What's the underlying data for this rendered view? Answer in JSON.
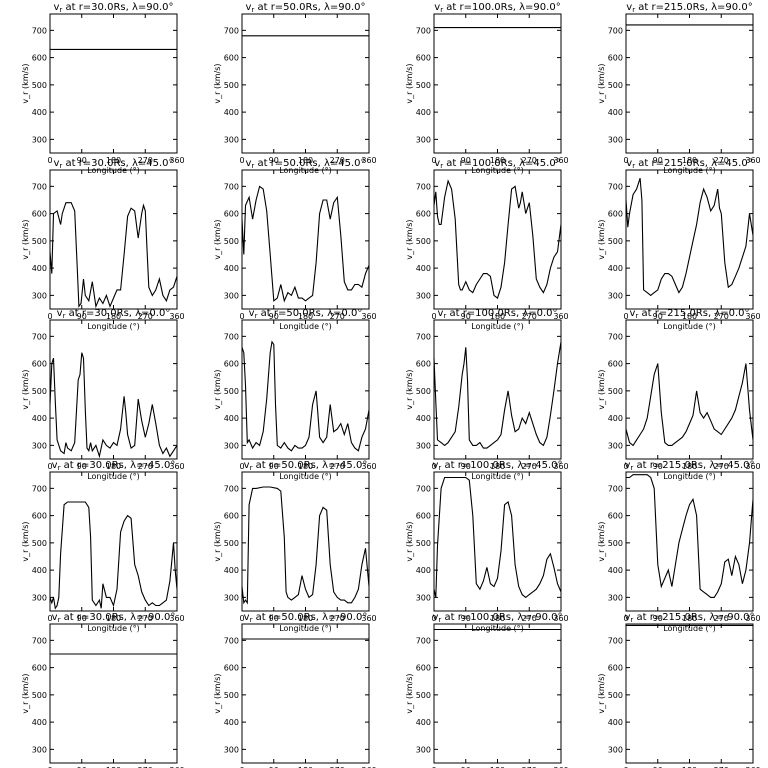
{
  "figure": {
    "xlabel": "Longitude (°)",
    "ylabel": "v_r (km/s)",
    "xlim": [
      0,
      360
    ],
    "ylim": [
      250,
      760
    ],
    "xticks": [
      0,
      90,
      180,
      270,
      360
    ],
    "yticks": [
      300,
      400,
      500,
      600,
      700
    ],
    "radii": [
      "30.0Rs",
      "50.0Rs",
      "100.0Rs",
      "215.0Rs"
    ],
    "latitudes": [
      "90.0°",
      "45.0°",
      "0.0°",
      "-45.0°",
      "-90.0°"
    ],
    "title_prefix": "v",
    "title_sub": "r",
    "title_mid": " at r=",
    "title_lat": ",  λ="
  },
  "chart_data": [
    {
      "type": "line",
      "row": 0,
      "col": 0,
      "title": "vr at r=30.0Rs, λ=90.0°",
      "x": [
        0,
        360
      ],
      "y": [
        630,
        630
      ]
    },
    {
      "type": "line",
      "row": 0,
      "col": 1,
      "title": "vr at r=50.0Rs, λ=90.0°",
      "x": [
        0,
        360
      ],
      "y": [
        680,
        680
      ]
    },
    {
      "type": "line",
      "row": 0,
      "col": 2,
      "title": "vr at r=100.0Rs, λ=90.0°",
      "x": [
        0,
        360
      ],
      "y": [
        710,
        710
      ]
    },
    {
      "type": "line",
      "row": 0,
      "col": 3,
      "title": "vr at r=215.0Rs, λ=90.0°",
      "x": [
        0,
        360
      ],
      "y": [
        720,
        720
      ]
    },
    {
      "type": "line",
      "row": 1,
      "col": 0,
      "title": "vr at r=30.0Rs, λ=45.0°",
      "x": [
        0,
        5,
        10,
        20,
        30,
        35,
        45,
        60,
        70,
        78,
        82,
        88,
        95,
        100,
        110,
        120,
        130,
        140,
        150,
        160,
        170,
        180,
        190,
        200,
        210,
        220,
        230,
        240,
        250,
        260,
        265,
        270,
        275,
        280,
        290,
        300,
        310,
        320,
        330,
        340,
        350,
        360
      ],
      "y": [
        460,
        380,
        600,
        610,
        560,
        600,
        640,
        640,
        610,
        380,
        260,
        270,
        360,
        300,
        280,
        350,
        260,
        290,
        270,
        300,
        260,
        290,
        320,
        320,
        450,
        590,
        620,
        610,
        510,
        600,
        630,
        610,
        470,
        330,
        300,
        320,
        360,
        300,
        280,
        320,
        330,
        370
      ]
    },
    {
      "type": "line",
      "row": 1,
      "col": 1,
      "title": "vr at r=50.0Rs, λ=45.0°",
      "x": [
        0,
        5,
        10,
        20,
        30,
        40,
        50,
        60,
        70,
        80,
        90,
        100,
        110,
        120,
        130,
        140,
        150,
        160,
        170,
        180,
        190,
        200,
        210,
        220,
        230,
        240,
        250,
        260,
        270,
        280,
        290,
        300,
        310,
        320,
        330,
        340,
        350,
        360
      ],
      "y": [
        580,
        450,
        630,
        660,
        580,
        650,
        700,
        690,
        610,
        450,
        280,
        290,
        340,
        280,
        310,
        300,
        330,
        290,
        290,
        280,
        290,
        300,
        420,
        600,
        650,
        650,
        580,
        640,
        660,
        520,
        350,
        320,
        320,
        340,
        340,
        330,
        380,
        410
      ]
    },
    {
      "type": "line",
      "row": 1,
      "col": 2,
      "title": "vr at r=100.0Rs, λ=45.0°",
      "x": [
        0,
        5,
        10,
        15,
        20,
        30,
        40,
        50,
        60,
        70,
        75,
        80,
        90,
        100,
        110,
        120,
        130,
        140,
        150,
        160,
        170,
        180,
        190,
        200,
        210,
        220,
        230,
        240,
        245,
        250,
        255,
        260,
        270,
        280,
        290,
        300,
        310,
        320,
        330,
        340,
        350,
        360
      ],
      "y": [
        630,
        680,
        590,
        560,
        560,
        660,
        720,
        690,
        580,
        340,
        320,
        320,
        350,
        320,
        310,
        340,
        360,
        380,
        380,
        370,
        300,
        290,
        330,
        420,
        560,
        690,
        700,
        620,
        640,
        680,
        640,
        600,
        640,
        520,
        360,
        330,
        310,
        340,
        400,
        440,
        460,
        560
      ]
    },
    {
      "type": "line",
      "row": 1,
      "col": 3,
      "title": "vr at r=215.0Rs, λ=45.0°",
      "x": [
        0,
        5,
        10,
        20,
        30,
        40,
        45,
        50,
        60,
        70,
        80,
        90,
        100,
        110,
        120,
        130,
        140,
        150,
        160,
        170,
        180,
        190,
        200,
        210,
        220,
        230,
        240,
        250,
        260,
        265,
        270,
        280,
        290,
        300,
        310,
        320,
        330,
        340,
        350,
        360
      ],
      "y": [
        650,
        550,
        600,
        670,
        690,
        730,
        650,
        320,
        310,
        300,
        310,
        320,
        360,
        380,
        380,
        370,
        340,
        310,
        330,
        380,
        440,
        500,
        560,
        640,
        690,
        660,
        610,
        630,
        690,
        620,
        600,
        420,
        330,
        340,
        370,
        400,
        440,
        480,
        600,
        520
      ]
    },
    {
      "type": "line",
      "row": 2,
      "col": 0,
      "title": "vr at r=30.0Rs, λ=0.0°",
      "x": [
        0,
        5,
        10,
        15,
        20,
        30,
        40,
        45,
        50,
        60,
        70,
        80,
        85,
        90,
        95,
        100,
        105,
        110,
        115,
        120,
        130,
        140,
        150,
        160,
        170,
        180,
        190,
        200,
        210,
        215,
        220,
        230,
        240,
        250,
        260,
        270,
        280,
        290,
        300,
        310,
        320,
        330,
        340,
        350,
        360
      ],
      "y": [
        450,
        600,
        620,
        460,
        320,
        280,
        270,
        310,
        290,
        280,
        310,
        540,
        560,
        640,
        620,
        430,
        290,
        280,
        310,
        280,
        300,
        260,
        320,
        300,
        290,
        310,
        300,
        360,
        480,
        420,
        340,
        290,
        300,
        470,
        390,
        330,
        380,
        450,
        380,
        300,
        270,
        290,
        260,
        280,
        300
      ]
    },
    {
      "type": "line",
      "row": 2,
      "col": 1,
      "title": "vr at r=50.0Rs, λ=0.0°",
      "x": [
        0,
        5,
        10,
        15,
        20,
        30,
        40,
        50,
        60,
        70,
        80,
        85,
        90,
        95,
        100,
        110,
        120,
        130,
        140,
        150,
        160,
        170,
        180,
        190,
        200,
        210,
        215,
        220,
        230,
        240,
        250,
        260,
        270,
        280,
        290,
        300,
        310,
        320,
        330,
        340,
        350,
        360
      ],
      "y": [
        660,
        640,
        520,
        310,
        320,
        290,
        310,
        300,
        350,
        470,
        640,
        680,
        670,
        450,
        300,
        290,
        310,
        290,
        280,
        300,
        290,
        290,
        300,
        330,
        450,
        500,
        420,
        330,
        310,
        330,
        450,
        350,
        360,
        380,
        340,
        380,
        310,
        290,
        280,
        330,
        360,
        430
      ]
    },
    {
      "type": "line",
      "row": 2,
      "col": 2,
      "title": "vr at r=100.0Rs, λ=0.0°",
      "x": [
        0,
        5,
        10,
        20,
        30,
        40,
        50,
        60,
        70,
        80,
        85,
        90,
        95,
        100,
        110,
        120,
        130,
        140,
        150,
        160,
        170,
        180,
        190,
        200,
        210,
        220,
        230,
        240,
        250,
        260,
        270,
        280,
        290,
        300,
        310,
        320,
        330,
        340,
        350,
        360
      ],
      "y": [
        620,
        460,
        320,
        310,
        300,
        310,
        330,
        350,
        440,
        560,
        600,
        660,
        540,
        320,
        300,
        300,
        310,
        290,
        290,
        300,
        310,
        320,
        340,
        430,
        500,
        410,
        350,
        360,
        400,
        380,
        420,
        380,
        340,
        310,
        300,
        330,
        410,
        500,
        600,
        680
      ]
    },
    {
      "type": "line",
      "row": 2,
      "col": 3,
      "title": "vr at r=215.0Rs, λ=0.0°",
      "x": [
        0,
        10,
        20,
        30,
        40,
        50,
        60,
        70,
        80,
        90,
        100,
        110,
        120,
        130,
        140,
        150,
        160,
        170,
        180,
        190,
        200,
        210,
        220,
        230,
        240,
        250,
        260,
        270,
        280,
        290,
        300,
        310,
        320,
        330,
        340,
        350,
        360
      ],
      "y": [
        360,
        310,
        300,
        320,
        340,
        360,
        400,
        480,
        560,
        600,
        420,
        310,
        300,
        300,
        310,
        320,
        330,
        350,
        380,
        410,
        500,
        420,
        400,
        420,
        390,
        360,
        350,
        340,
        360,
        380,
        400,
        430,
        480,
        530,
        600,
        430,
        320
      ]
    },
    {
      "type": "line",
      "row": 3,
      "col": 0,
      "title": "vr at r=30.0Rs, λ=-45.0°",
      "x": [
        0,
        5,
        10,
        15,
        20,
        25,
        30,
        40,
        50,
        60,
        80,
        100,
        110,
        115,
        120,
        130,
        140,
        145,
        150,
        160,
        170,
        180,
        190,
        200,
        210,
        220,
        230,
        240,
        250,
        260,
        270,
        280,
        290,
        300,
        310,
        320,
        330,
        340,
        350,
        355,
        360
      ],
      "y": [
        300,
        280,
        300,
        260,
        270,
        300,
        460,
        640,
        650,
        650,
        650,
        650,
        630,
        520,
        290,
        270,
        290,
        260,
        350,
        300,
        300,
        270,
        330,
        540,
        580,
        600,
        590,
        420,
        380,
        320,
        290,
        270,
        280,
        270,
        270,
        280,
        290,
        360,
        500,
        400,
        330
      ]
    },
    {
      "type": "line",
      "row": 3,
      "col": 1,
      "title": "vr at r=50.0Rs, λ=-45.0°",
      "x": [
        0,
        5,
        10,
        15,
        20,
        30,
        40,
        60,
        80,
        100,
        110,
        120,
        125,
        130,
        140,
        150,
        160,
        170,
        180,
        190,
        200,
        210,
        220,
        230,
        240,
        250,
        260,
        270,
        280,
        290,
        300,
        310,
        320,
        330,
        340,
        350,
        360
      ],
      "y": [
        340,
        280,
        290,
        280,
        640,
        700,
        700,
        705,
        705,
        700,
        690,
        520,
        320,
        300,
        290,
        300,
        310,
        380,
        330,
        300,
        310,
        420,
        600,
        630,
        620,
        420,
        320,
        300,
        290,
        290,
        280,
        280,
        300,
        330,
        420,
        480,
        340
      ]
    },
    {
      "type": "line",
      "row": 3,
      "col": 2,
      "title": "vr at r=100.0Rs, λ=-45.0°",
      "x": [
        0,
        5,
        10,
        20,
        30,
        50,
        70,
        90,
        100,
        110,
        120,
        130,
        140,
        150,
        160,
        170,
        180,
        190,
        200,
        210,
        220,
        230,
        240,
        250,
        260,
        270,
        280,
        290,
        300,
        310,
        320,
        330,
        340,
        350,
        360
      ],
      "y": [
        330,
        300,
        490,
        700,
        740,
        740,
        740,
        740,
        730,
        600,
        350,
        330,
        360,
        410,
        350,
        340,
        370,
        470,
        640,
        650,
        600,
        420,
        340,
        310,
        300,
        310,
        320,
        330,
        350,
        380,
        440,
        460,
        410,
        350,
        320
      ]
    },
    {
      "type": "line",
      "row": 3,
      "col": 3,
      "title": "vr at r=215.0Rs, λ=-45.0°",
      "x": [
        0,
        10,
        20,
        40,
        60,
        70,
        80,
        90,
        100,
        110,
        120,
        130,
        140,
        150,
        160,
        170,
        180,
        190,
        200,
        210,
        220,
        230,
        240,
        250,
        260,
        270,
        280,
        290,
        300,
        310,
        320,
        330,
        340,
        350,
        360
      ],
      "y": [
        740,
        740,
        750,
        750,
        750,
        740,
        700,
        420,
        340,
        370,
        400,
        340,
        420,
        500,
        550,
        600,
        640,
        660,
        600,
        330,
        320,
        310,
        300,
        300,
        320,
        350,
        430,
        440,
        380,
        450,
        420,
        350,
        400,
        500,
        660
      ]
    },
    {
      "type": "line",
      "row": 4,
      "col": 0,
      "title": "vr at r=30.0Rs, λ=-90.0°",
      "x": [
        0,
        360
      ],
      "y": [
        650,
        650
      ]
    },
    {
      "type": "line",
      "row": 4,
      "col": 1,
      "title": "vr at r=50.0Rs, λ=-90.0°",
      "x": [
        0,
        360
      ],
      "y": [
        705,
        705
      ]
    },
    {
      "type": "line",
      "row": 4,
      "col": 2,
      "title": "vr at r=100.0Rs, λ=-90.0°",
      "x": [
        0,
        360
      ],
      "y": [
        740,
        740
      ]
    },
    {
      "type": "line",
      "row": 4,
      "col": 3,
      "title": "vr at r=215.0Rs, λ=-90.0°",
      "x": [
        0,
        360
      ],
      "y": [
        755,
        755
      ]
    }
  ]
}
